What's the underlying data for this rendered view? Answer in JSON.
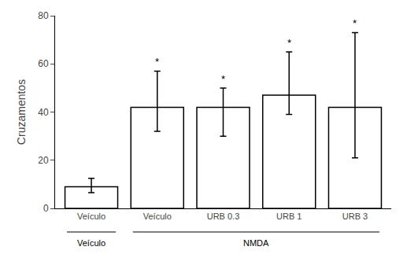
{
  "chart_data": {
    "type": "bar",
    "categories": [
      "Veículo",
      "Veículo",
      "URB 0.3",
      "URB 1",
      "URB 3"
    ],
    "values": [
      9,
      42,
      42,
      47,
      42
    ],
    "errors_lower": [
      2.5,
      10,
      12,
      8,
      21
    ],
    "errors_upper": [
      3.5,
      15,
      8,
      18,
      31
    ],
    "color": "white",
    "ylabel": "Cruzamentos",
    "ylim": [
      0,
      80
    ],
    "yticks": [
      0,
      20,
      40,
      60,
      80
    ],
    "grid": false,
    "annotations": [
      {
        "text": "*",
        "x": 1
      },
      {
        "text": "*",
        "x": 2
      },
      {
        "text": "*",
        "x": 3
      },
      {
        "text": "*",
        "x": 4
      }
    ],
    "groups": [
      {
        "label": "Veículo",
        "start": 0,
        "end": 0
      },
      {
        "label": "NMDA",
        "start": 1,
        "end": 4
      }
    ]
  }
}
